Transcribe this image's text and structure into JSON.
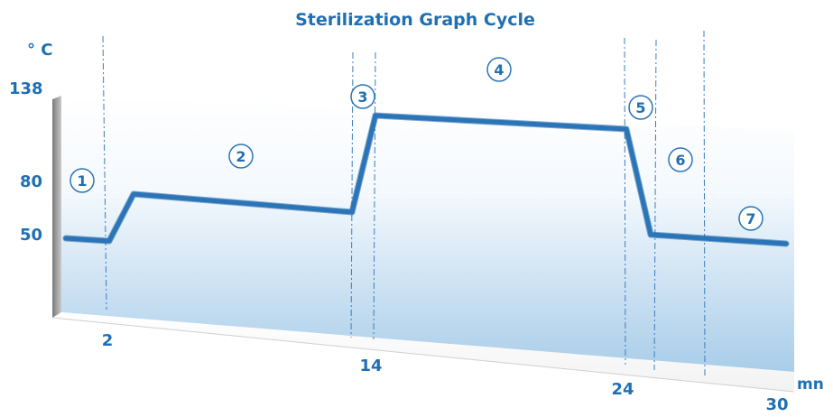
{
  "chart_data": {
    "type": "line",
    "title": "Sterilization Graph Cycle",
    "ylabel": "° C",
    "xlabel": "mn",
    "y_ticks": [
      "138",
      "80",
      "50"
    ],
    "x_ticks": [
      "2",
      "14",
      "24",
      "30"
    ],
    "phase_labels": [
      "1",
      "2",
      "3",
      "4",
      "5",
      "6",
      "7"
    ],
    "colors": {
      "line": "#2a74b8",
      "text": "#1f6fb3",
      "guide": "#3a7dc0"
    },
    "grid": false
  }
}
